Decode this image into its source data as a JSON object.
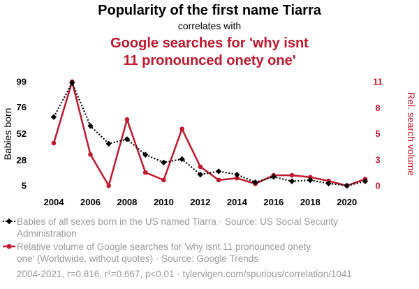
{
  "chart_data": {
    "type": "line",
    "title": "Popularity of the first name Tiarra",
    "subtitle": "correlates with",
    "title2_lines": [
      "Google searches for 'why isnt",
      "11 pronounced onety one'"
    ],
    "x": [
      2004,
      2005,
      2006,
      2007,
      2008,
      2009,
      2010,
      2011,
      2012,
      2013,
      2014,
      2015,
      2016,
      2017,
      2018,
      2019,
      2020,
      2021
    ],
    "x_ticks": [
      "2004",
      "2006",
      "2008",
      "2010",
      "2012",
      "2014",
      "2016",
      "2018",
      "2020"
    ],
    "xlim": [
      2004,
      2021
    ],
    "ylabel_left": "Babies born",
    "ylabel_right": "Rel. search volume",
    "y_left_ticks": [
      "5",
      "28",
      "52",
      "76",
      "99"
    ],
    "y_left_lim": [
      5,
      99
    ],
    "y_right_ticks": [
      "0",
      "3",
      "5",
      "8",
      "11"
    ],
    "y_right_lim": [
      0,
      11
    ],
    "series": [
      {
        "name": "Babies born",
        "axis": "left",
        "color": "#000000",
        "style": "dotted",
        "marker": "diamond",
        "values": [
          67,
          98,
          59,
          43,
          47,
          33,
          26,
          29,
          15,
          18,
          15,
          8,
          13,
          9,
          10,
          7,
          5,
          9
        ]
      },
      {
        "name": "Rel. search volume",
        "axis": "right",
        "color": "#c0182d",
        "style": "solid",
        "marker": "circle",
        "values": [
          4.5,
          11,
          3.3,
          0,
          7,
          1.4,
          0.6,
          6,
          2,
          0.6,
          0.8,
          0.2,
          1.1,
          1.1,
          0.9,
          0.5,
          0,
          0.7
        ]
      }
    ],
    "legend": [
      {
        "lines": [
          "Babies of all sexes born in the US named Tiarra · Source: US Social Security",
          "Administration"
        ]
      },
      {
        "lines": [
          "Relative volume of Google searches for 'why isnt 11 pronounced onety",
          "one' (Worldwide, without quotes) · Source: Google Trends"
        ]
      }
    ],
    "footer": "2004-2021, r=0.816, r²=0.667, p<0.01 · tylervigen.com/spurious/correlation/1041"
  }
}
